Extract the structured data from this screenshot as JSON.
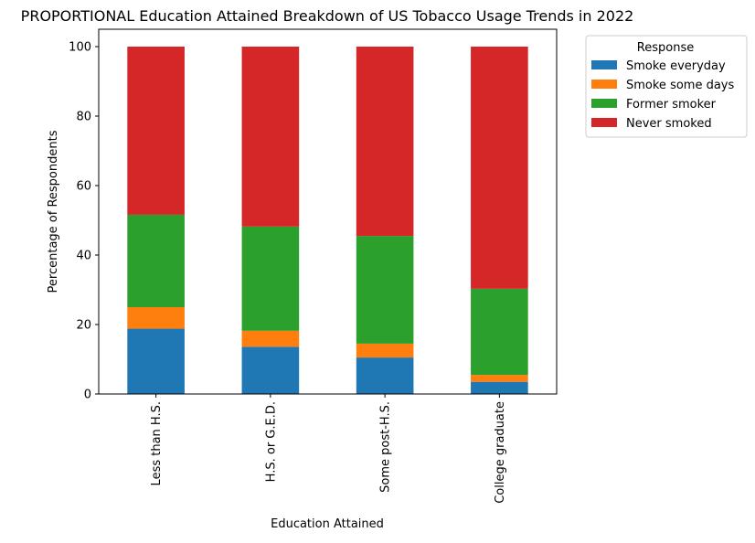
{
  "chart_data": {
    "type": "bar",
    "stacked": true,
    "title": "PROPORTIONAL Education Attained Breakdown of US Tobacco Usage Trends in 2022",
    "xlabel": "Education Attained",
    "ylabel": "Percentage of Respondents",
    "ylim": [
      0,
      105
    ],
    "yticks": [
      0,
      20,
      40,
      60,
      80,
      100
    ],
    "categories": [
      "Less than H.S.",
      "H.S. or G.E.D.",
      "Some post-H.S.",
      "College graduate"
    ],
    "legend_title": "Response",
    "legend_position": "outside-right-top",
    "grid": false,
    "series": [
      {
        "name": "Smoke everyday",
        "color": "#1f77b4",
        "values": [
          18.8,
          13.6,
          10.5,
          3.5
        ]
      },
      {
        "name": "Smoke some days",
        "color": "#ff7f0e",
        "values": [
          6.2,
          4.6,
          4.0,
          2.0
        ]
      },
      {
        "name": "Former smoker",
        "color": "#2ca02c",
        "values": [
          26.6,
          30.0,
          31.0,
          24.8
        ]
      },
      {
        "name": "Never smoked",
        "color": "#d62728",
        "values": [
          48.4,
          51.8,
          54.5,
          69.7
        ]
      }
    ]
  }
}
